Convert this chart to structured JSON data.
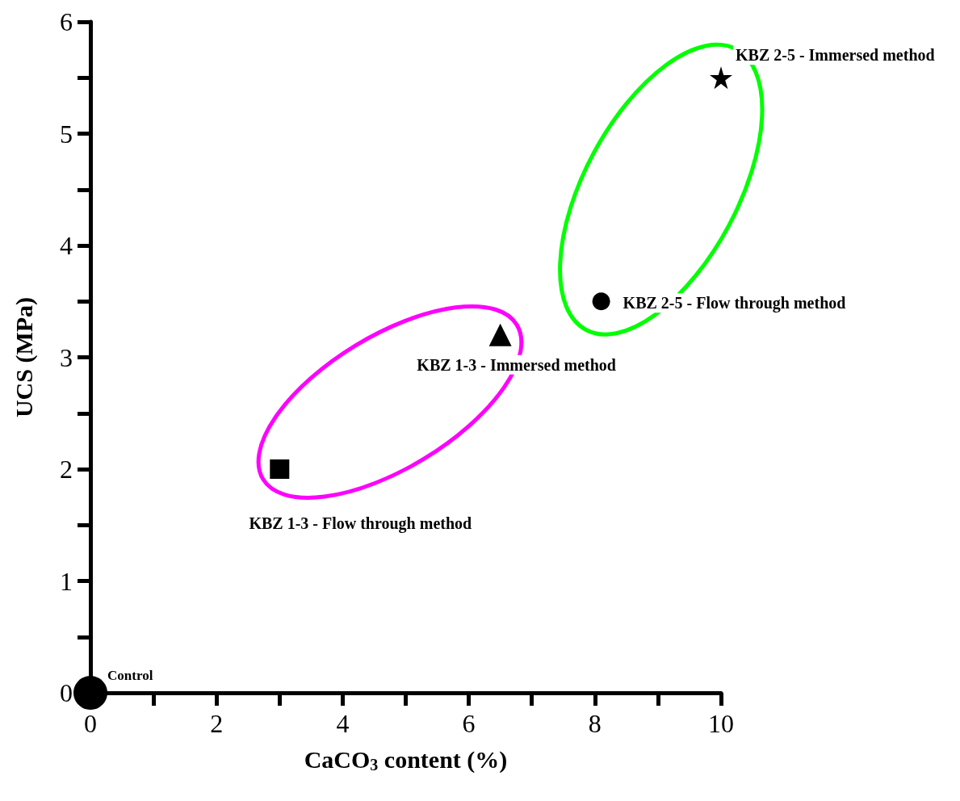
{
  "chart_data": {
    "type": "scatter",
    "xlabel": "CaCO$_{3}$ content (%)",
    "ylabel": "UCS (MPa)",
    "xlim": [
      0,
      10
    ],
    "xticks": [
      0,
      {
        "value": 1,
        "label": null
      },
      2,
      {
        "value": 3,
        "label": null
      },
      4,
      {
        "value": 5,
        "label": null
      },
      6,
      {
        "value": 7,
        "label": null
      },
      8,
      {
        "value": 9,
        "label": null
      },
      10
    ],
    "ylim": [
      0,
      6
    ],
    "yticks": [
      0,
      {
        "value": 0.5,
        "label": null
      },
      1,
      {
        "value": 1.5,
        "label": null
      },
      2,
      {
        "value": 2.5,
        "label": null
      },
      3,
      {
        "value": 3.5,
        "label": null
      },
      4,
      {
        "value": 4.5,
        "label": null
      },
      5,
      {
        "value": 5.5,
        "label": null
      },
      6
    ],
    "grid": false,
    "legend": false,
    "series": [
      {
        "name": "Control",
        "color": "#000000",
        "marker": "circle",
        "x": [
          0
        ],
        "values": [
          0
        ]
      },
      {
        "name": "KBZ 1-3 - Flow through method",
        "color": "#000000",
        "marker": "square",
        "x": [
          3
        ],
        "values": [
          2
        ]
      },
      {
        "name": "KBZ 1-3 - Immersed method",
        "color": "#000000",
        "marker": "triangle",
        "x": [
          6.5
        ],
        "values": [
          3.2
        ]
      },
      {
        "name": "KBZ 2-5 - Flow through method",
        "color": "#000000",
        "marker": "circle",
        "x": [
          8.1
        ],
        "values": [
          3.5
        ]
      },
      {
        "name": "KBZ 2-5 - Immersed method",
        "color": "#000000",
        "marker": "star",
        "x": [
          10
        ],
        "values": [
          5.5
        ]
      }
    ]
  }
}
